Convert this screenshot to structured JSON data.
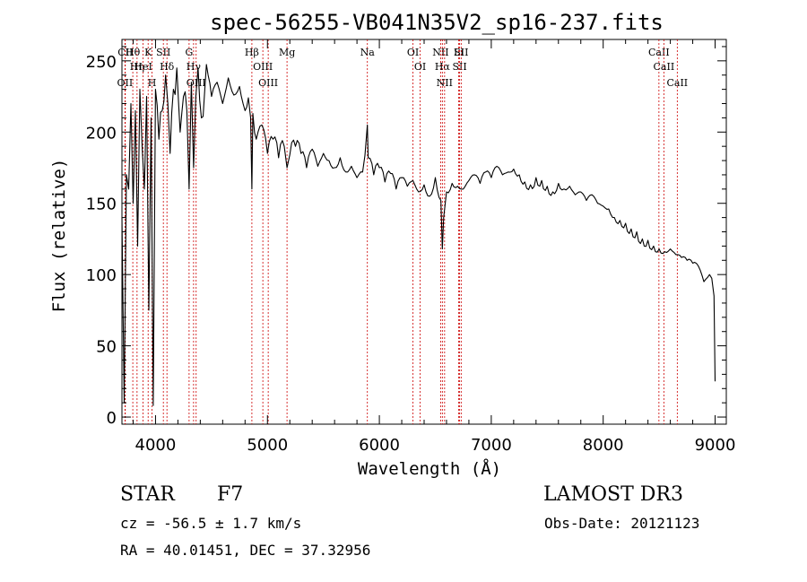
{
  "chart_data": {
    "type": "line",
    "title": "spec-56255-VB041N35V2_sp16-237.fits",
    "xlabel": "Wavelength (Å)",
    "ylabel": "Flux (relative)",
    "xlim": [
      3700,
      9100
    ],
    "ylim": [
      -5,
      265
    ],
    "x_ticks": [
      4000,
      5000,
      6000,
      7000,
      8000,
      9000
    ],
    "y_ticks": [
      0,
      50,
      100,
      150,
      200,
      250
    ],
    "grid": false,
    "line_color": "#000000",
    "marker_color": "#cc0000",
    "spectrum": {
      "x": [
        3700,
        3720,
        3740,
        3760,
        3780,
        3800,
        3820,
        3840,
        3860,
        3880,
        3900,
        3920,
        3940,
        3960,
        3980,
        4000,
        4030,
        4060,
        4090,
        4110,
        4130,
        4160,
        4190,
        4220,
        4250,
        4280,
        4300,
        4320,
        4340,
        4360,
        4380,
        4410,
        4440,
        4470,
        4500,
        4550,
        4600,
        4650,
        4700,
        4750,
        4800,
        4830,
        4850,
        4861,
        4870,
        4900,
        4950,
        5000,
        5050,
        5100,
        5150,
        5175,
        5200,
        5250,
        5300,
        5350,
        5400,
        5450,
        5500,
        5550,
        5600,
        5650,
        5700,
        5750,
        5800,
        5850,
        5893,
        5900,
        5950,
        6000,
        6050,
        6100,
        6150,
        6200,
        6250,
        6300,
        6350,
        6400,
        6450,
        6500,
        6550,
        6563,
        6575,
        6600,
        6650,
        6700,
        6750,
        6800,
        6850,
        6900,
        6950,
        7000,
        7050,
        7100,
        7150,
        7200,
        7250,
        7300,
        7350,
        7400,
        7450,
        7500,
        7550,
        7600,
        7650,
        7700,
        7750,
        7800,
        7850,
        7900,
        7950,
        8000,
        8050,
        8100,
        8150,
        8200,
        8250,
        8300,
        8350,
        8400,
        8450,
        8500,
        8550,
        8600,
        8650,
        8700,
        8750,
        8800,
        8850,
        8900,
        8950,
        8990,
        9000
      ],
      "y": [
        140,
        10,
        170,
        160,
        220,
        150,
        215,
        120,
        230,
        190,
        160,
        225,
        75,
        210,
        8,
        230,
        195,
        215,
        240,
        220,
        185,
        230,
        245,
        200,
        225,
        215,
        160,
        235,
        175,
        225,
        245,
        210,
        230,
        240,
        225,
        235,
        220,
        238,
        226,
        232,
        215,
        224,
        210,
        160,
        213,
        195,
        205,
        185,
        195,
        182,
        190,
        175,
        184,
        190,
        185,
        175,
        188,
        176,
        185,
        180,
        175,
        182,
        172,
        176,
        168,
        172,
        205,
        182,
        170,
        175,
        165,
        171,
        160,
        168,
        162,
        166,
        158,
        163,
        155,
        168,
        152,
        118,
        140,
        158,
        164,
        162,
        160,
        166,
        170,
        164,
        172,
        168,
        176,
        170,
        172,
        174,
        170,
        165,
        163,
        168,
        166,
        162,
        158,
        164,
        160,
        162,
        156,
        158,
        152,
        156,
        150,
        148,
        146,
        140,
        138,
        136,
        132,
        130,
        125,
        124,
        120,
        118,
        116,
        118,
        114,
        112,
        110,
        108,
        106,
        95,
        100,
        85,
        25
      ]
    },
    "lines": [
      {
        "label": "Hθ",
        "x": 3797
      },
      {
        "label": "Hη",
        "x": 3835
      },
      {
        "label": "OII",
        "x": 3727
      },
      {
        "label": "CII",
        "x": 3730
      },
      {
        "label": "HeI",
        "x": 3889
      },
      {
        "label": "K",
        "x": 3934
      },
      {
        "label": "H",
        "x": 3969
      },
      {
        "label": "SII",
        "x": 4070
      },
      {
        "label": "Hδ",
        "x": 4102
      },
      {
        "label": "G",
        "x": 4300
      },
      {
        "label": "Hγ",
        "x": 4340
      },
      {
        "label": "OIII",
        "x": 4363
      },
      {
        "label": "Hβ",
        "x": 4861
      },
      {
        "label": "OIII",
        "x": 4959
      },
      {
        "label": "OIII",
        "x": 5007
      },
      {
        "label": "Mg",
        "x": 5175
      },
      {
        "label": "Na",
        "x": 5893
      },
      {
        "label": "OI",
        "x": 6300
      },
      {
        "label": "OI",
        "x": 6364
      },
      {
        "label": "NII",
        "x": 6548
      },
      {
        "label": "Hα",
        "x": 6563
      },
      {
        "label": "NII",
        "x": 6583
      },
      {
        "label": "Li",
        "x": 6708
      },
      {
        "label": "SII",
        "x": 6717
      },
      {
        "label": "SII",
        "x": 6731
      },
      {
        "label": "CaII",
        "x": 8498
      },
      {
        "label": "CaII",
        "x": 8542
      },
      {
        "label": "CaII",
        "x": 8662
      }
    ]
  },
  "info": {
    "object_class": "STAR",
    "subclass": "F7",
    "survey": "LAMOST DR3",
    "cz": "cz = -56.5 ± 1.7 km/s",
    "obs_date": "Obs-Date: 20121123",
    "coords": "RA =  40.01451, DEC =  37.32956"
  }
}
